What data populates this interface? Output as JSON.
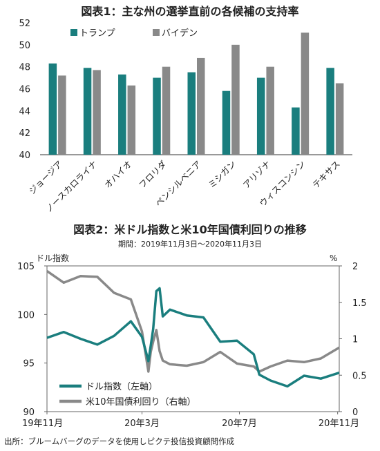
{
  "colors": {
    "trump": "#1a7e7e",
    "biden": "#898989",
    "dollar": "#1a7e7e",
    "yield": "#898989"
  },
  "chart_data": [
    {
      "type": "bar",
      "title": "図表1：主な州の選挙直前の各候補の支持率",
      "categories": [
        "ジョージア",
        "ノースカロライナ",
        "オハイオ",
        "フロリダ",
        "ペンシルベニア",
        "ミシガン",
        "アリゾナ",
        "ウィスコンシン",
        "テキサス"
      ],
      "series": [
        {
          "name": "トランプ",
          "values": [
            48.3,
            47.9,
            47.3,
            47.0,
            47.5,
            45.8,
            47.0,
            44.3,
            47.9
          ]
        },
        {
          "name": "バイデン",
          "values": [
            47.2,
            47.7,
            46.3,
            48.0,
            48.8,
            50.0,
            48.0,
            51.1,
            46.5
          ]
        }
      ],
      "ylim": [
        40,
        52
      ],
      "yticks": [
        "40",
        "42",
        "44",
        "46",
        "48",
        "50",
        "52"
      ],
      "legend": "top-left",
      "grid": false
    },
    {
      "type": "line",
      "title": "図表2：米ドル指数と米10年国債利回りの推移",
      "subtitle": "期間：2019年11月3日～2020年11月3日",
      "ylabel_left": "ドル指数",
      "ylabel_right": "%",
      "ylim_left": [
        90,
        105
      ],
      "yticks_left": [
        "90",
        "95",
        "100",
        "105"
      ],
      "ylim_right": [
        0,
        2
      ],
      "yticks_right": [
        "0",
        "0.5",
        "1",
        "1.5",
        "2"
      ],
      "xticks": [
        "19年11月",
        "20年3月",
        "20年7月",
        "20年11月"
      ],
      "x": [
        "2019-11-03",
        "2019-11-24",
        "2019-12-15",
        "2020-01-05",
        "2020-01-26",
        "2020-02-16",
        "2020-03-01",
        "2020-03-09",
        "2020-03-12",
        "2020-03-15",
        "2020-03-19",
        "2020-03-23",
        "2020-03-27",
        "2020-04-05",
        "2020-04-26",
        "2020-05-17",
        "2020-06-07",
        "2020-06-28",
        "2020-07-19",
        "2020-07-26",
        "2020-08-09",
        "2020-08-30",
        "2020-09-20",
        "2020-10-11",
        "2020-11-03"
      ],
      "series": [
        {
          "name": "ドル指数（左軸）",
          "axis": "left",
          "values": [
            97.6,
            98.2,
            97.5,
            96.9,
            97.8,
            99.3,
            97.7,
            95.2,
            96.8,
            98.5,
            102.4,
            102.7,
            99.8,
            100.5,
            99.9,
            99.7,
            97.2,
            97.3,
            95.9,
            93.8,
            93.2,
            92.6,
            93.7,
            93.4,
            94.0
          ]
        },
        {
          "name": "米10年国債利回り（右軸）",
          "axis": "right",
          "values": [
            1.93,
            1.77,
            1.86,
            1.85,
            1.63,
            1.54,
            1.1,
            0.55,
            0.82,
            0.96,
            1.12,
            0.83,
            0.7,
            0.65,
            0.63,
            0.68,
            0.82,
            0.66,
            0.62,
            0.55,
            0.62,
            0.7,
            0.68,
            0.73,
            0.88
          ]
        }
      ],
      "legend": "bottom-left"
    }
  ],
  "source": "出所：ブルームバーグのデータを使用しピクテ投信投資顧問作成"
}
